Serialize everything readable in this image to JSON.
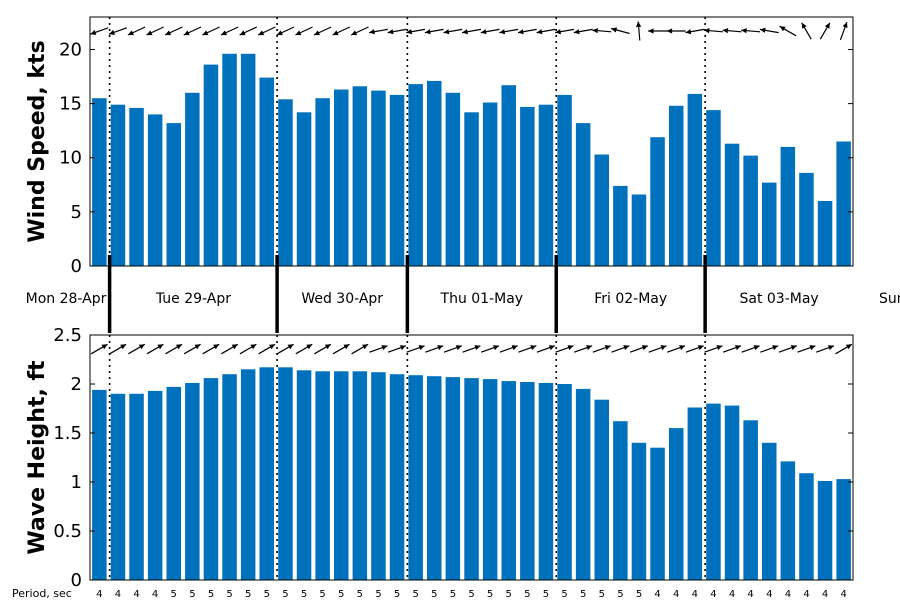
{
  "chart_data": [
    {
      "type": "bar",
      "ylabel": "Wind Speed, kts",
      "ylim": [
        0,
        23
      ],
      "yticks": [
        0,
        5,
        10,
        15,
        20
      ],
      "bar_color": "#0072BD",
      "values": [
        15.5,
        14.9,
        14.6,
        14.0,
        13.2,
        16.0,
        18.6,
        19.6,
        19.6,
        17.4,
        15.4,
        14.2,
        15.5,
        16.3,
        16.6,
        16.2,
        15.8,
        16.8,
        17.1,
        16.0,
        14.2,
        15.1,
        16.7,
        14.7,
        14.9,
        15.8,
        13.2,
        10.3,
        7.4,
        6.6,
        11.9,
        14.8,
        15.9,
        14.4,
        11.3,
        10.2,
        7.7,
        11.0,
        8.6,
        6.0,
        11.5
      ],
      "arrows": {
        "description": "wind direction arrows along top edge",
        "directions_deg": [
          250,
          250,
          245,
          245,
          245,
          245,
          245,
          245,
          245,
          245,
          245,
          245,
          245,
          245,
          245,
          260,
          260,
          260,
          260,
          260,
          260,
          260,
          260,
          260,
          260,
          260,
          260,
          275,
          285,
          355,
          270,
          270,
          260,
          275,
          275,
          275,
          280,
          300,
          330,
          30,
          20
        ]
      }
    },
    {
      "type": "bar",
      "ylabel": "Wave Height, ft",
      "ylim": [
        0,
        2.5
      ],
      "yticks": [
        0,
        0.5,
        1,
        1.5,
        2,
        2.5
      ],
      "bar_color": "#0072BD",
      "values": [
        1.94,
        1.9,
        1.9,
        1.93,
        1.97,
        2.01,
        2.06,
        2.1,
        2.15,
        2.17,
        2.17,
        2.14,
        2.13,
        2.13,
        2.13,
        2.12,
        2.1,
        2.09,
        2.08,
        2.07,
        2.06,
        2.05,
        2.03,
        2.02,
        2.01,
        2.0,
        1.95,
        1.84,
        1.62,
        1.4,
        1.35,
        1.55,
        1.76,
        1.8,
        1.78,
        1.63,
        1.4,
        1.21,
        1.09,
        1.01,
        1.03
      ],
      "arrows": {
        "description": "wave direction arrows along top edge",
        "directions_deg": [
          60,
          60,
          60,
          60,
          60,
          60,
          60,
          60,
          60,
          60,
          60,
          60,
          60,
          60,
          60,
          70,
          70,
          70,
          70,
          70,
          70,
          70,
          70,
          70,
          70,
          70,
          70,
          70,
          70,
          70,
          70,
          70,
          70,
          70,
          70,
          70,
          70,
          70,
          70,
          70,
          60
        ]
      }
    }
  ],
  "days": [
    {
      "label": "Mon 28-Apr"
    },
    {
      "label": "Tue 29-Apr"
    },
    {
      "label": "Wed 30-Apr"
    },
    {
      "label": "Thu 01-May"
    },
    {
      "label": "Fri 02-May"
    },
    {
      "label": "Sat 03-May"
    },
    {
      "label": "Sun"
    }
  ],
  "period": {
    "label": "Period, sec",
    "values": [
      4,
      4,
      4,
      4,
      5,
      5,
      5,
      5,
      5,
      5,
      5,
      5,
      5,
      5,
      5,
      5,
      5,
      5,
      5,
      5,
      5,
      5,
      5,
      5,
      5,
      5,
      5,
      5,
      5,
      5,
      4,
      4,
      4,
      4,
      4,
      4,
      4,
      4,
      4,
      4,
      4
    ]
  }
}
